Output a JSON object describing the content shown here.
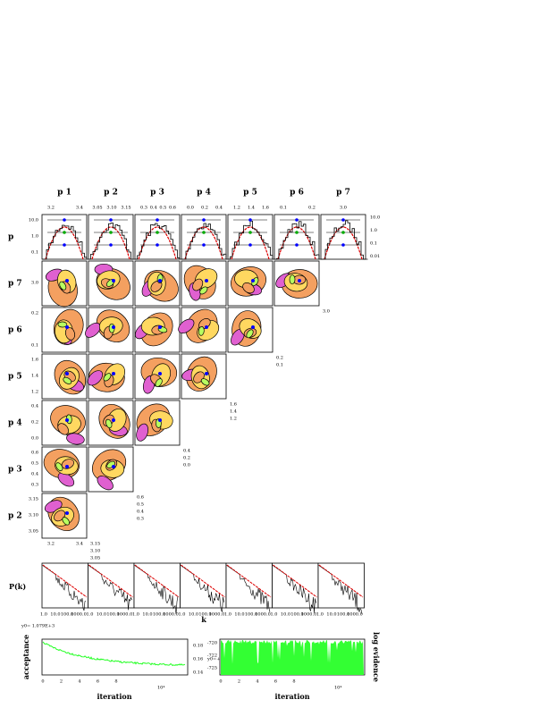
{
  "columns": [
    "p 1",
    "p 2",
    "p 3",
    "p 4",
    "p 5",
    "p 6",
    "p 7"
  ],
  "column_ticks": [
    [
      "3.2",
      "3.4"
    ],
    [
      "3.05",
      "3.10",
      "3.15"
    ],
    [
      "0.3",
      "0.4",
      "0.5",
      "0.6"
    ],
    [
      "0.0",
      "0.2",
      "0.4"
    ],
    [
      "1.2",
      "1.4",
      "1.6"
    ],
    [
      "0.1",
      "0.2"
    ],
    [
      "3.0"
    ]
  ],
  "rows": [
    "p",
    "p 7",
    "p 6",
    "p 5",
    "p 4",
    "p 3",
    "p 2"
  ],
  "row_ticks": [
    [
      "10.0",
      "1.0",
      "0.1"
    ],
    [
      "3.0"
    ],
    [
      "0.2",
      "0.1"
    ],
    [
      "1.6",
      "1.4",
      "1.2"
    ],
    [
      "0.4",
      "0.2",
      "0.0"
    ],
    [
      "0.6",
      "0.5",
      "0.4",
      "0.3"
    ],
    [
      "3.15",
      "3.10",
      "3.05"
    ]
  ],
  "top_right_ticks": [
    "10.0",
    "1.0",
    "0.1",
    "0.01"
  ],
  "pk": {
    "label": "P(k)",
    "xticks": [
      "1.0",
      "10.0",
      "100.0",
      "1000.0"
    ],
    "xlabel": "k"
  },
  "acceptance": {
    "note": "y0= 1.079E+3",
    "ylabel": "acceptance",
    "xlabel": "iteration",
    "scale": "10⁴",
    "xticks": [
      "0",
      "2",
      "4",
      "6",
      "8"
    ],
    "yticks": [
      "0.18",
      "0.16",
      "0.14"
    ]
  },
  "evidence": {
    "note": "y0=+7",
    "ylabel": "log evidence",
    "xlabel": "iteration",
    "scale": "10⁴",
    "xticks": [
      "0",
      "2",
      "4",
      "6",
      "8"
    ],
    "yticks": [
      "-720",
      "-722",
      "-725"
    ]
  }
}
